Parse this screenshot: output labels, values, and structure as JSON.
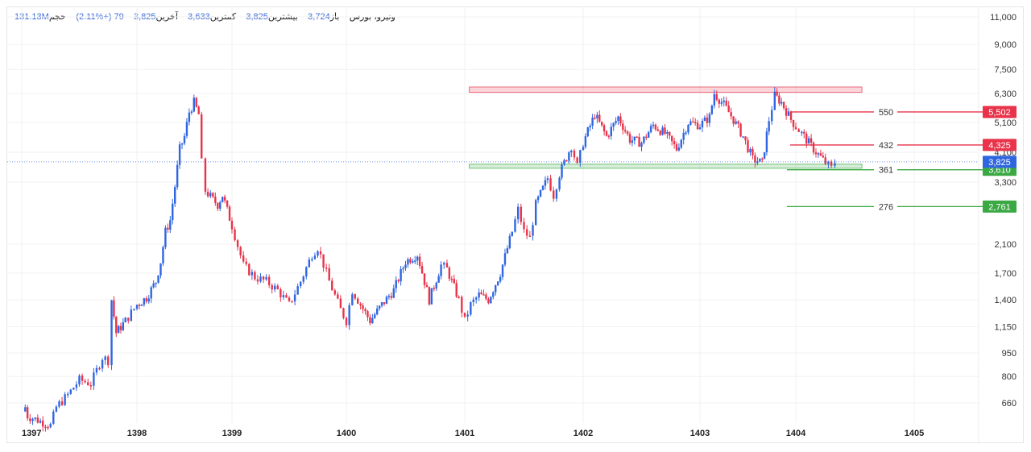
{
  "header": {
    "symbol": "ونیرو، بورس",
    "open_label": "باز",
    "open_value": "3,724",
    "high_label": "بیشترین",
    "high_value": "3,825",
    "low_label": "کمترین",
    "low_value": "3,633",
    "close_label": "آخرین",
    "close_value": "3,825",
    "change": "79 (+2.11%)",
    "volume_label": "حجم",
    "volume_value": "131.13M"
  },
  "colors": {
    "up": "#2f66e0",
    "down": "#e8334a",
    "resistance": "#e8334a",
    "support": "#3aa843",
    "last_price": "#2f66e0",
    "grid": "#f1f1f1"
  },
  "chart_data": {
    "type": "candlestick",
    "title": "ونیرو، بورس",
    "scale": "log",
    "ylim": [
      560,
      12000
    ],
    "y_ticks": [
      11000,
      9000,
      7500,
      6300,
      5100,
      4100,
      3300,
      2100,
      1700,
      1400,
      1150,
      950,
      800,
      660
    ],
    "x_ticks": [
      "1397",
      "1398",
      "1399",
      "1400",
      "1401",
      "1402",
      "1403",
      "1404",
      "1405"
    ],
    "last_price": 3825,
    "price_path": [
      [
        1397.0,
        620
      ],
      [
        1397.03,
        640
      ],
      [
        1397.05,
        600
      ],
      [
        1397.25,
        560
      ],
      [
        1397.3,
        640
      ],
      [
        1397.4,
        700
      ],
      [
        1397.5,
        780
      ],
      [
        1397.6,
        760
      ],
      [
        1397.7,
        920
      ],
      [
        1397.75,
        900
      ],
      [
        1397.78,
        1400
      ],
      [
        1397.82,
        1100
      ],
      [
        1397.9,
        1200
      ],
      [
        1398.0,
        1350
      ],
      [
        1398.1,
        1420
      ],
      [
        1398.2,
        1600
      ],
      [
        1398.25,
        1850
      ],
      [
        1398.3,
        2300
      ],
      [
        1398.35,
        2500
      ],
      [
        1398.4,
        3200
      ],
      [
        1398.45,
        4200
      ],
      [
        1398.5,
        4600
      ],
      [
        1398.55,
        5500
      ],
      [
        1398.6,
        5900
      ],
      [
        1398.65,
        5400
      ],
      [
        1398.68,
        3800
      ],
      [
        1398.72,
        3100
      ],
      [
        1398.8,
        2900
      ],
      [
        1398.85,
        2800
      ],
      [
        1398.9,
        3000
      ],
      [
        1399.0,
        2400
      ],
      [
        1399.1,
        1800
      ],
      [
        1399.2,
        1650
      ],
      [
        1399.3,
        1600
      ],
      [
        1399.4,
        1500
      ],
      [
        1399.5,
        1350
      ],
      [
        1399.6,
        1600
      ],
      [
        1399.7,
        1950
      ],
      [
        1399.75,
        2050
      ],
      [
        1399.85,
        1600
      ],
      [
        1399.95,
        1300
      ],
      [
        1400.0,
        1200
      ],
      [
        1400.05,
        1500
      ],
      [
        1400.12,
        1350
      ],
      [
        1400.2,
        1200
      ],
      [
        1400.3,
        1350
      ],
      [
        1400.4,
        1500
      ],
      [
        1400.5,
        1850
      ],
      [
        1400.6,
        1950
      ],
      [
        1400.7,
        1400
      ],
      [
        1400.8,
        1800
      ],
      [
        1400.85,
        1750
      ],
      [
        1400.95,
        1400
      ],
      [
        1401.0,
        1200
      ],
      [
        1401.05,
        1350
      ],
      [
        1401.12,
        1450
      ],
      [
        1401.2,
        1400
      ],
      [
        1401.3,
        1700
      ],
      [
        1401.4,
        2300
      ],
      [
        1401.45,
        2700
      ],
      [
        1401.5,
        2300
      ],
      [
        1401.55,
        2200
      ],
      [
        1401.6,
        2800
      ],
      [
        1401.7,
        3400
      ],
      [
        1401.75,
        3000
      ],
      [
        1401.8,
        3500
      ],
      [
        1401.9,
        4300
      ],
      [
        1401.95,
        3700
      ],
      [
        1402.0,
        4400
      ],
      [
        1402.1,
        5400
      ],
      [
        1402.2,
        4600
      ],
      [
        1402.3,
        5300
      ],
      [
        1402.4,
        4500
      ],
      [
        1402.5,
        4400
      ],
      [
        1402.6,
        5000
      ],
      [
        1402.7,
        4700
      ],
      [
        1402.8,
        4200
      ],
      [
        1402.9,
        5100
      ],
      [
        1403.0,
        5000
      ],
      [
        1403.1,
        5300
      ],
      [
        1403.15,
        6300
      ],
      [
        1403.25,
        5800
      ],
      [
        1403.35,
        5200
      ],
      [
        1403.45,
        4600
      ],
      [
        1403.55,
        3900
      ],
      [
        1403.65,
        3800
      ],
      [
        1403.72,
        5200
      ],
      [
        1403.78,
        6200
      ],
      [
        1403.85,
        5900
      ],
      [
        1403.95,
        5200
      ],
      [
        1404.05,
        4700
      ],
      [
        1404.15,
        4200
      ],
      [
        1404.25,
        3800
      ],
      [
        1404.3,
        3650
      ],
      [
        1404.33,
        3825
      ]
    ],
    "levels": [
      {
        "label": "550",
        "price": 5502,
        "tag": "5,502",
        "type": "resistance"
      },
      {
        "label": "432",
        "price": 4325,
        "tag": "4,325",
        "type": "resistance"
      },
      {
        "label": "361",
        "price": 3610,
        "tag": "3,610",
        "type": "support"
      },
      {
        "label": "276",
        "price": 2761,
        "tag": "2,761",
        "type": "support"
      }
    ],
    "zones": [
      {
        "type": "resistance",
        "from": 6350,
        "to": 6600,
        "x_start": "1401.8",
        "x_end": "1404.3"
      },
      {
        "type": "support",
        "from": 3650,
        "to": 3760,
        "x_start": "1401.8",
        "x_end": "1404.3"
      }
    ]
  }
}
